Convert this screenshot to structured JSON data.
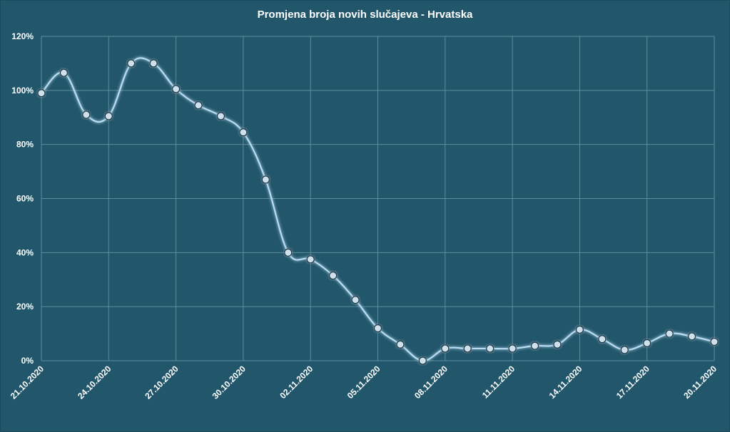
{
  "chart_data": {
    "type": "line",
    "title": "Promjena broja novih slučajeva - Hrvatska",
    "xlabel": "",
    "ylabel": "",
    "y_tick_labels": [
      "0%",
      "20%",
      "40%",
      "60%",
      "80%",
      "100%",
      "120%"
    ],
    "ylim": [
      0,
      120
    ],
    "x_tick_labels": [
      "21.10.2020",
      "24.10.2020",
      "27.10.2020",
      "30.10.2020",
      "02.11.2020",
      "05.11.2020",
      "08.11.2020",
      "11.11.2020",
      "14.11.2020",
      "17.11.2020",
      "20.11.2020"
    ],
    "x": [
      "21.10.2020",
      "22.10.2020",
      "23.10.2020",
      "24.10.2020",
      "25.10.2020",
      "26.10.2020",
      "27.10.2020",
      "28.10.2020",
      "29.10.2020",
      "30.10.2020",
      "31.10.2020",
      "01.11.2020",
      "02.11.2020",
      "03.11.2020",
      "04.11.2020",
      "05.11.2020",
      "06.11.2020",
      "07.11.2020",
      "08.11.2020",
      "09.11.2020",
      "10.11.2020",
      "11.11.2020",
      "12.11.2020",
      "13.11.2020",
      "14.11.2020",
      "15.11.2020",
      "16.11.2020",
      "17.11.2020",
      "18.11.2020",
      "19.11.2020",
      "20.11.2020"
    ],
    "series": [
      {
        "values": [
          99,
          106.5,
          91,
          90.5,
          110,
          110,
          100.5,
          94.5,
          90.5,
          84.5,
          67,
          40,
          37.5,
          31.5,
          22.5,
          12,
          6,
          0,
          4.5,
          4.5,
          4.5,
          4.5,
          5.5,
          6,
          11.5,
          8,
          4,
          6.5,
          10,
          9,
          7
        ]
      }
    ],
    "grid": true,
    "legend": "none",
    "colors": {
      "background": "#21566b",
      "line": "#b9dcf2",
      "marker_fill": "#cfe0ea",
      "marker_stroke": "#16384a",
      "grid": "#5f8c9c"
    }
  }
}
